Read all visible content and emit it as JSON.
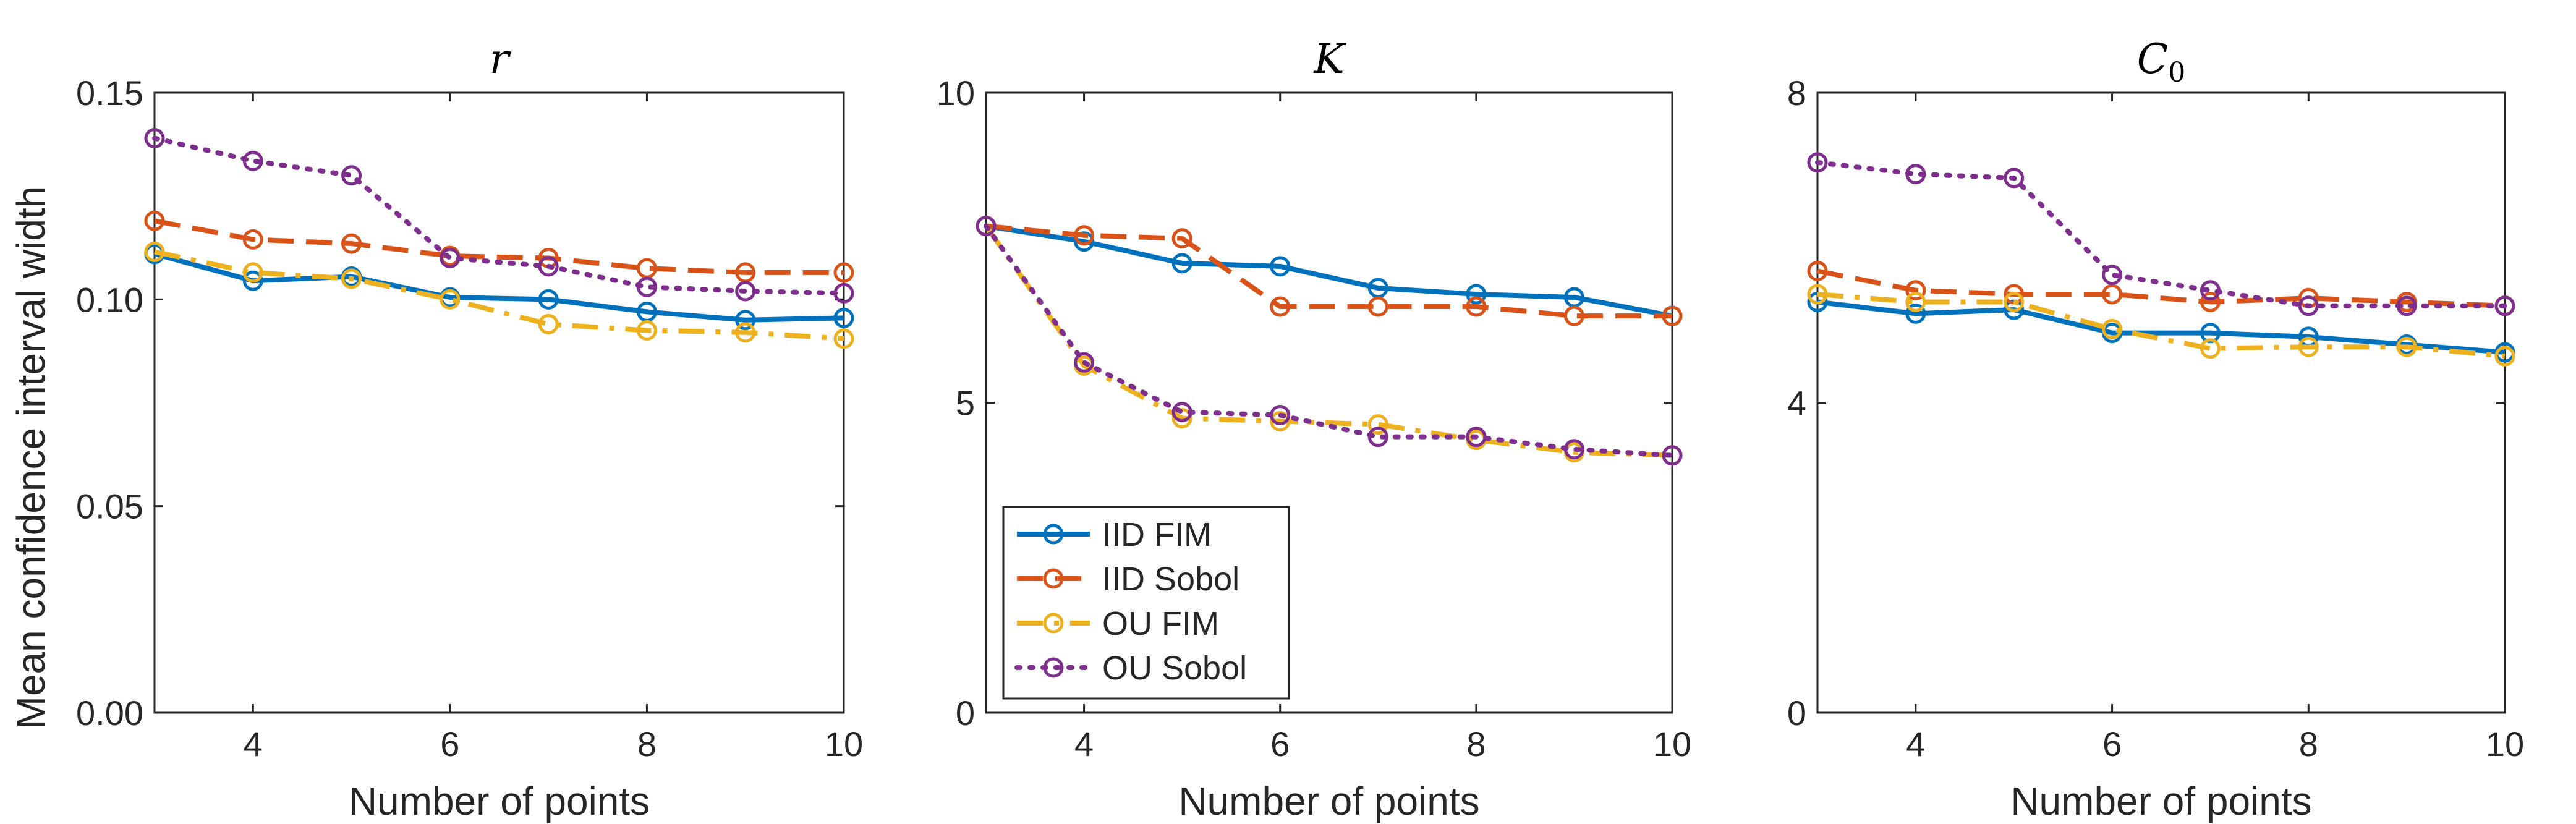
{
  "chart_data": {
    "type": "line",
    "ylabel": "Mean confidence interval width",
    "legend": {
      "placement": "lower-left of middle panel",
      "entries": [
        {
          "name": "IID FIM",
          "color": "#0072BD",
          "dash": "solid"
        },
        {
          "name": "IID Sobol",
          "color": "#D95319",
          "dash": "dashed"
        },
        {
          "name": "OU FIM",
          "color": "#EDB120",
          "dash": "dashdot"
        },
        {
          "name": "OU Sobol",
          "color": "#7E2F8E",
          "dash": "dotted"
        }
      ]
    },
    "panels": [
      {
        "title": "r",
        "title_sub": "",
        "xlabel": "Number of points",
        "xlim": [
          3,
          10
        ],
        "ylim": [
          0,
          0.15
        ],
        "xticks": [
          {
            "v": 4,
            "label": "4"
          },
          {
            "v": 6,
            "label": "6"
          },
          {
            "v": 8,
            "label": "8"
          },
          {
            "v": 10,
            "label": "10"
          }
        ],
        "yticks": [
          {
            "v": 0,
            "label": "0.00"
          },
          {
            "v": 0.05,
            "label": "0.05"
          },
          {
            "v": 0.1,
            "label": "0.10"
          },
          {
            "v": 0.15,
            "label": "0.15"
          }
        ],
        "x": [
          3,
          4,
          5,
          6,
          7,
          8,
          9,
          10
        ],
        "series": [
          {
            "name": "IID FIM",
            "values": [
              0.111,
              0.1045,
              0.1055,
              0.1005,
              0.1,
              0.097,
              0.095,
              0.0955
            ]
          },
          {
            "name": "IID Sobol",
            "values": [
              0.119,
              0.1145,
              0.1135,
              0.1105,
              0.11,
              0.1075,
              0.1065,
              0.1065
            ]
          },
          {
            "name": "OU FIM",
            "values": [
              0.1115,
              0.1065,
              0.105,
              0.1,
              0.094,
              0.0925,
              0.092,
              0.0905
            ]
          },
          {
            "name": "OU Sobol",
            "values": [
              0.139,
              0.1335,
              0.13,
              0.11,
              0.108,
              0.103,
              0.102,
              0.1015
            ]
          }
        ]
      },
      {
        "title": "K",
        "title_sub": "",
        "xlabel": "Number of points",
        "xlim": [
          3,
          10
        ],
        "ylim": [
          0,
          10
        ],
        "xticks": [
          {
            "v": 4,
            "label": "4"
          },
          {
            "v": 6,
            "label": "6"
          },
          {
            "v": 8,
            "label": "8"
          },
          {
            "v": 10,
            "label": "10"
          }
        ],
        "yticks": [
          {
            "v": 0,
            "label": "0"
          },
          {
            "v": 5,
            "label": "5"
          },
          {
            "v": 10,
            "label": "10"
          }
        ],
        "x": [
          3,
          4,
          5,
          6,
          7,
          8,
          9,
          10
        ],
        "series": [
          {
            "name": "IID FIM",
            "values": [
              7.85,
              7.6,
              7.25,
              7.2,
              6.85,
              6.75,
              6.7,
              6.4
            ]
          },
          {
            "name": "IID Sobol",
            "values": [
              7.85,
              7.7,
              7.65,
              6.55,
              6.55,
              6.55,
              6.4,
              6.4
            ]
          },
          {
            "name": "OU FIM",
            "values": [
              7.85,
              5.6,
              4.75,
              4.7,
              4.65,
              4.4,
              4.2,
              4.15
            ]
          },
          {
            "name": "OU Sobol",
            "values": [
              7.85,
              5.65,
              4.85,
              4.8,
              4.45,
              4.45,
              4.25,
              4.15
            ]
          }
        ]
      },
      {
        "title": "C",
        "title_sub": "0",
        "xlabel": "Number of points",
        "xlim": [
          3,
          10
        ],
        "ylim": [
          0,
          8
        ],
        "xticks": [
          {
            "v": 4,
            "label": "4"
          },
          {
            "v": 6,
            "label": "6"
          },
          {
            "v": 8,
            "label": "8"
          },
          {
            "v": 10,
            "label": "10"
          }
        ],
        "yticks": [
          {
            "v": 0,
            "label": "0"
          },
          {
            "v": 4,
            "label": "4"
          },
          {
            "v": 8,
            "label": "8"
          }
        ],
        "x": [
          3,
          4,
          5,
          6,
          7,
          8,
          9,
          10
        ],
        "series": [
          {
            "name": "IID FIM",
            "values": [
              5.3,
              5.15,
              5.2,
              4.9,
              4.9,
              4.85,
              4.75,
              4.65
            ]
          },
          {
            "name": "IID Sobol",
            "values": [
              5.7,
              5.45,
              5.4,
              5.4,
              5.3,
              5.35,
              5.3,
              5.25
            ]
          },
          {
            "name": "OU FIM",
            "values": [
              5.4,
              5.3,
              5.3,
              4.95,
              4.7,
              4.72,
              4.72,
              4.6
            ]
          },
          {
            "name": "OU Sobol",
            "values": [
              7.1,
              6.95,
              6.9,
              5.65,
              5.45,
              5.25,
              5.25,
              5.25
            ]
          }
        ]
      }
    ]
  }
}
